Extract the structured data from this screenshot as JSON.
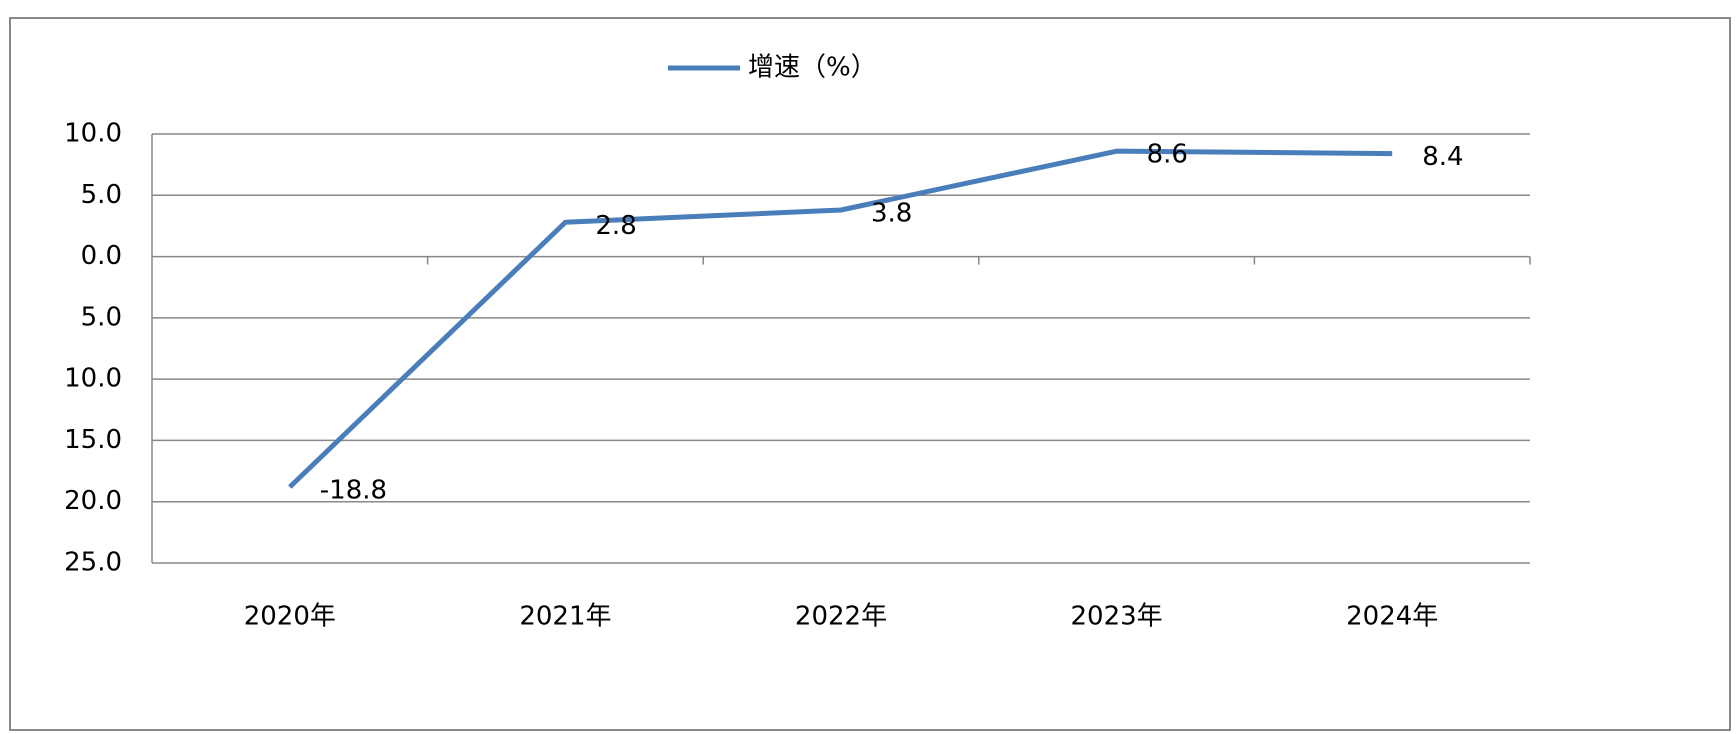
{
  "chart_data": {
    "type": "line",
    "categories": [
      "2020年",
      "2021年",
      "2022年",
      "2023年",
      "2024年"
    ],
    "series": [
      {
        "name": "增速（%）",
        "color": "#4a7ebb",
        "values": [
          -18.8,
          2.8,
          3.8,
          8.6,
          8.4
        ]
      }
    ],
    "ylim": [
      -25,
      10
    ],
    "yticks": [
      {
        "value": 10,
        "label": "10.0"
      },
      {
        "value": 5,
        "label": "5.0"
      },
      {
        "value": 0,
        "label": "0.0"
      },
      {
        "value": -5,
        "label": "5.0"
      },
      {
        "value": -10,
        "label": "10.0"
      },
      {
        "value": -15,
        "label": "15.0"
      },
      {
        "value": -20,
        "label": "20.0"
      },
      {
        "value": -25,
        "label": "25.0"
      }
    ],
    "negative_tick_color": "#ff0000",
    "grid": true,
    "legend": "top"
  }
}
